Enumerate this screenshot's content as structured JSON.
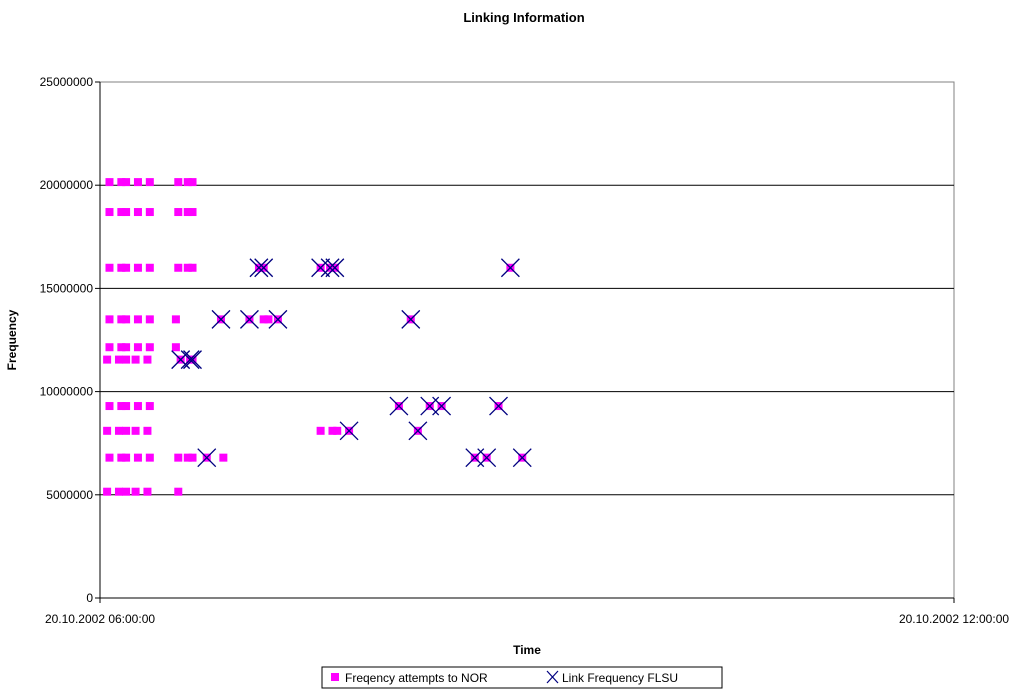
{
  "chart_data": {
    "type": "scatter",
    "title": "Linking Information",
    "xlabel": "Time",
    "ylabel": "Frequency",
    "xlim": [
      "20.10.2002 06:00:00",
      "20.10.2002 12:00:00"
    ],
    "x_tick_labels": [
      "20.10.2002 06:00:00",
      "20.10.2002 12:00:00"
    ],
    "ylim": [
      0,
      25000000
    ],
    "y_ticks": [
      0,
      5000000,
      10000000,
      15000000,
      20000000,
      25000000
    ],
    "y_tick_labels": [
      "0",
      "5000000",
      "10000000",
      "15000000",
      "20000000",
      "25000000"
    ],
    "grid": "horizontal",
    "legend_position": "bottom",
    "series": [
      {
        "name": "Freqency attempts to NOR",
        "marker": "square",
        "color": "#FF00FF",
        "points": [
          [
            "06:04",
            20150000
          ],
          [
            "06:04",
            18700000
          ],
          [
            "06:04",
            16000000
          ],
          [
            "06:04",
            13500000
          ],
          [
            "06:04",
            12150000
          ],
          [
            "06:04",
            9300000
          ],
          [
            "06:04",
            6800000
          ],
          [
            "06:03",
            11550000
          ],
          [
            "06:03",
            8100000
          ],
          [
            "06:03",
            5150000
          ],
          [
            "06:09",
            20150000
          ],
          [
            "06:09",
            18700000
          ],
          [
            "06:09",
            16000000
          ],
          [
            "06:09",
            13500000
          ],
          [
            "06:09",
            12150000
          ],
          [
            "06:09",
            9300000
          ],
          [
            "06:09",
            6800000
          ],
          [
            "06:08",
            11550000
          ],
          [
            "06:08",
            8100000
          ],
          [
            "06:08",
            5150000
          ],
          [
            "06:11",
            20150000
          ],
          [
            "06:11",
            18700000
          ],
          [
            "06:11",
            16000000
          ],
          [
            "06:11",
            13500000
          ],
          [
            "06:11",
            12150000
          ],
          [
            "06:11",
            11550000
          ],
          [
            "06:11",
            9300000
          ],
          [
            "06:11",
            8100000
          ],
          [
            "06:11",
            6800000
          ],
          [
            "06:11",
            5150000
          ],
          [
            "06:16",
            20150000
          ],
          [
            "06:16",
            18700000
          ],
          [
            "06:16",
            16000000
          ],
          [
            "06:16",
            13500000
          ],
          [
            "06:16",
            12150000
          ],
          [
            "06:16",
            9300000
          ],
          [
            "06:16",
            6800000
          ],
          [
            "06:15",
            11550000
          ],
          [
            "06:15",
            8100000
          ],
          [
            "06:15",
            5150000
          ],
          [
            "06:21",
            20150000
          ],
          [
            "06:21",
            18700000
          ],
          [
            "06:21",
            16000000
          ],
          [
            "06:21",
            13500000
          ],
          [
            "06:21",
            12150000
          ],
          [
            "06:21",
            9300000
          ],
          [
            "06:21",
            6800000
          ],
          [
            "06:20",
            11550000
          ],
          [
            "06:20",
            8100000
          ],
          [
            "06:20",
            5150000
          ],
          [
            "06:33",
            20150000
          ],
          [
            "06:33",
            18700000
          ],
          [
            "06:33",
            16000000
          ],
          [
            "06:33",
            6800000
          ],
          [
            "06:33",
            5150000
          ],
          [
            "06:32",
            13500000
          ],
          [
            "06:32",
            12150000
          ],
          [
            "06:37",
            20150000
          ],
          [
            "06:37",
            18700000
          ],
          [
            "06:37",
            16000000
          ],
          [
            "06:37",
            6800000
          ],
          [
            "06:39",
            20150000
          ],
          [
            "06:39",
            18700000
          ],
          [
            "06:39",
            16000000
          ],
          [
            "06:39",
            6800000
          ],
          [
            "06:34",
            11550000
          ],
          [
            "06:38",
            11550000
          ],
          [
            "06:39",
            11550000
          ],
          [
            "06:45",
            6800000
          ],
          [
            "06:51",
            13500000
          ],
          [
            "06:52",
            6800000
          ],
          [
            "07:03",
            13500000
          ],
          [
            "07:07",
            16000000
          ],
          [
            "07:09",
            16000000
          ],
          [
            "07:09",
            13500000
          ],
          [
            "07:11",
            13500000
          ],
          [
            "07:15",
            13500000
          ],
          [
            "07:33",
            16000000
          ],
          [
            "07:37",
            16000000
          ],
          [
            "07:39",
            16000000
          ],
          [
            "07:33",
            8100000
          ],
          [
            "07:38",
            8100000
          ],
          [
            "07:40",
            8100000
          ],
          [
            "07:45",
            8100000
          ],
          [
            "08:06",
            9300000
          ],
          [
            "08:11",
            13500000
          ],
          [
            "08:14",
            8100000
          ],
          [
            "08:19",
            9300000
          ],
          [
            "08:24",
            9300000
          ],
          [
            "08:38",
            6800000
          ],
          [
            "08:43",
            6800000
          ],
          [
            "08:48",
            9300000
          ],
          [
            "08:53",
            16000000
          ],
          [
            "08:58",
            6800000
          ]
        ]
      },
      {
        "name": "Link Frequency FLSU",
        "marker": "x",
        "color": "#000080",
        "points": [
          [
            "06:34",
            11550000
          ],
          [
            "06:38",
            11550000
          ],
          [
            "06:39",
            11550000
          ],
          [
            "06:45",
            6800000
          ],
          [
            "06:51",
            13500000
          ],
          [
            "07:03",
            13500000
          ],
          [
            "07:07",
            16000000
          ],
          [
            "07:09",
            16000000
          ],
          [
            "07:15",
            13500000
          ],
          [
            "07:33",
            16000000
          ],
          [
            "07:37",
            16000000
          ],
          [
            "07:39",
            16000000
          ],
          [
            "07:45",
            8100000
          ],
          [
            "08:06",
            9300000
          ],
          [
            "08:11",
            13500000
          ],
          [
            "08:14",
            8100000
          ],
          [
            "08:19",
            9300000
          ],
          [
            "08:24",
            9300000
          ],
          [
            "08:38",
            6800000
          ],
          [
            "08:43",
            6800000
          ],
          [
            "08:48",
            9300000
          ],
          [
            "08:53",
            16000000
          ],
          [
            "08:58",
            6800000
          ]
        ]
      }
    ]
  }
}
